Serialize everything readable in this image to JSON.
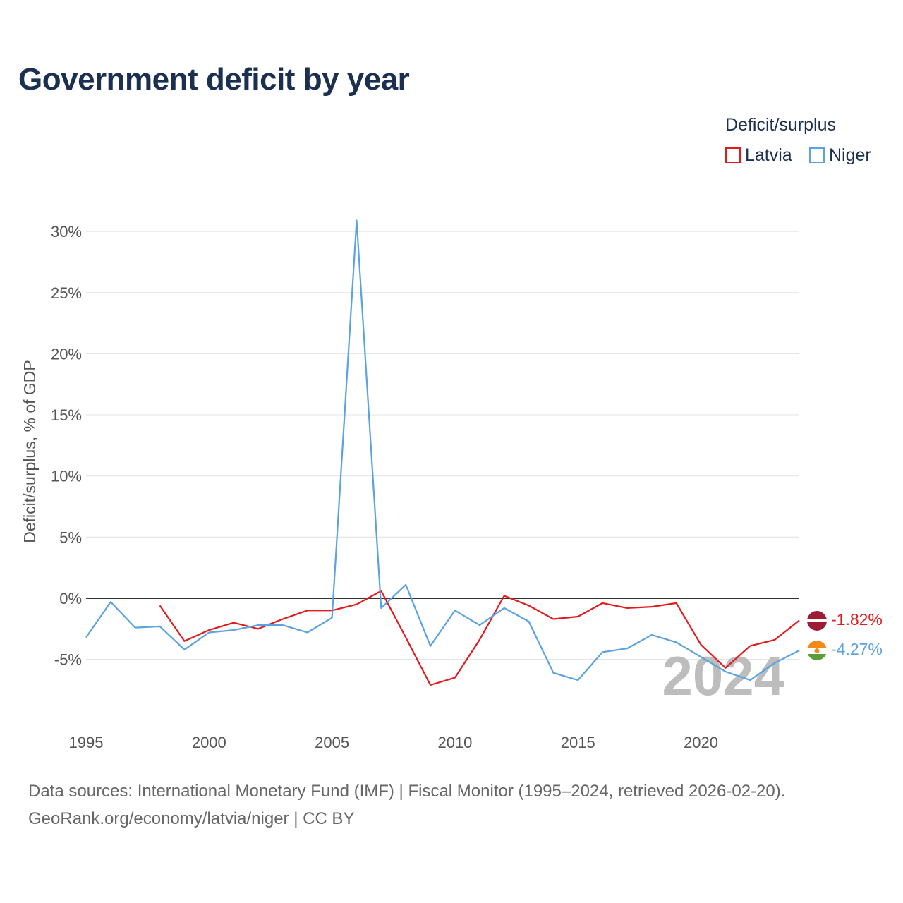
{
  "title": "Government deficit by year",
  "legend": {
    "title": "Deficit/surplus",
    "items": [
      {
        "label": "Latvia",
        "color": "#e31a1c"
      },
      {
        "label": "Niger",
        "color": "#5aa2e0"
      }
    ]
  },
  "footer": {
    "sources": "Data sources: International Monetary Fund (IMF) | Fiscal Monitor (1995–2024, retrieved 2026-02-20).",
    "attribution": "GeoRank.org/economy/latvia/niger | CC BY"
  },
  "chart_data": {
    "type": "line",
    "title": "Government deficit by year",
    "xlabel": "",
    "ylabel": "Deficit/surplus, % of GDP",
    "xlim": [
      1995,
      2024
    ],
    "ylim": [
      -9,
      31
    ],
    "x_ticks": [
      1995,
      2000,
      2005,
      2010,
      2015,
      2020
    ],
    "x_tick_labels": [
      "1995",
      "2000",
      "2005",
      "2010",
      "2015",
      "2020"
    ],
    "y_ticks": [
      -5,
      0,
      5,
      10,
      15,
      20,
      25,
      30
    ],
    "y_tick_labels": [
      "-5%",
      "0%",
      "5%",
      "10%",
      "15%",
      "20%",
      "25%",
      "30%"
    ],
    "year_label": "2024",
    "series": [
      {
        "name": "Latvia",
        "color": "#e31a1c",
        "end_label": "-1.82%",
        "x": [
          1998,
          1999,
          2000,
          2001,
          2002,
          2003,
          2004,
          2005,
          2006,
          2007,
          2008,
          2009,
          2010,
          2011,
          2012,
          2013,
          2014,
          2015,
          2016,
          2017,
          2018,
          2019,
          2020,
          2021,
          2022,
          2023,
          2024
        ],
        "values": [
          -0.6,
          -3.5,
          -2.6,
          -2.0,
          -2.5,
          -1.7,
          -1.0,
          -1.0,
          -0.5,
          0.6,
          -3.2,
          -7.1,
          -6.5,
          -3.4,
          0.2,
          -0.6,
          -1.7,
          -1.5,
          -0.4,
          -0.8,
          -0.7,
          -0.4,
          -3.8,
          -5.7,
          -3.9,
          -3.4,
          -1.82
        ]
      },
      {
        "name": "Niger",
        "color": "#5aa2e0",
        "end_label": "-4.27%",
        "x": [
          1995,
          1996,
          1997,
          1998,
          1999,
          2000,
          2001,
          2002,
          2003,
          2004,
          2005,
          2006,
          2007,
          2008,
          2009,
          2010,
          2011,
          2012,
          2013,
          2014,
          2015,
          2016,
          2017,
          2018,
          2019,
          2020,
          2021,
          2022,
          2023,
          2024
        ],
        "values": [
          -3.2,
          -0.3,
          -2.4,
          -2.3,
          -4.2,
          -2.8,
          -2.6,
          -2.2,
          -2.2,
          -2.8,
          -1.6,
          30.9,
          -0.8,
          1.1,
          -3.9,
          -1.0,
          -2.2,
          -0.8,
          -1.9,
          -6.1,
          -6.7,
          -4.4,
          -4.1,
          -3.0,
          -3.6,
          -4.8,
          -6.0,
          -6.7,
          -5.3,
          -4.27
        ]
      }
    ]
  }
}
